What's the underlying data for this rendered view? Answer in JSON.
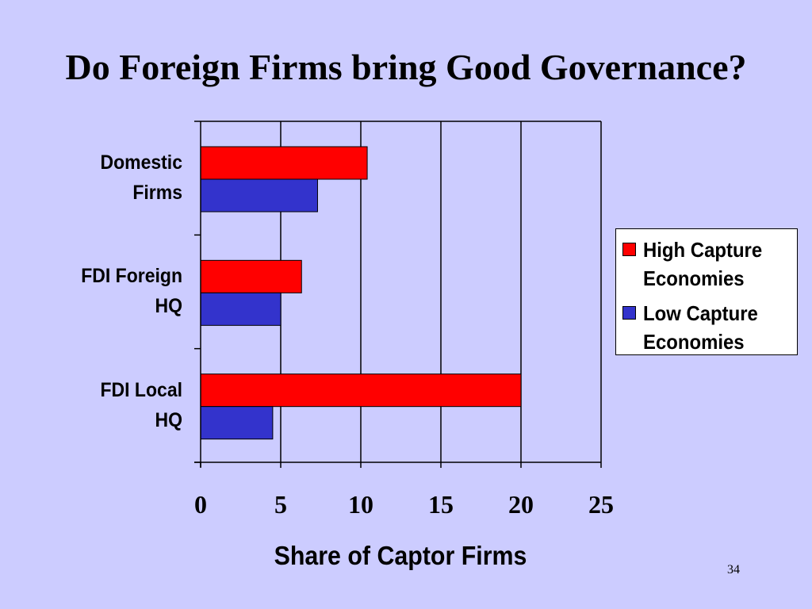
{
  "slide": {
    "title": "Do Foreign Firms bring Good Governance?",
    "page_number": "34"
  },
  "chart_data": {
    "type": "bar",
    "orientation": "horizontal",
    "title": "",
    "categories": [
      [
        "Domestic",
        "Firms"
      ],
      [
        "FDI Foreign",
        "HQ"
      ],
      [
        "FDI Local",
        "HQ"
      ]
    ],
    "series": [
      {
        "name": [
          "High Capture",
          "Economies"
        ],
        "values": [
          10.4,
          6.3,
          20.0
        ],
        "color": "#ff0000"
      },
      {
        "name": [
          "Low Capture",
          "Economies"
        ],
        "values": [
          7.3,
          5.0,
          4.5
        ],
        "color": "#3333cc"
      }
    ],
    "xlabel": "Share of Captor Firms",
    "ylabel": "",
    "xlim": [
      0,
      25
    ],
    "xticks": [
      "0",
      "5",
      "10",
      "15",
      "20",
      "25"
    ],
    "grid": true,
    "legend_position": "right"
  }
}
